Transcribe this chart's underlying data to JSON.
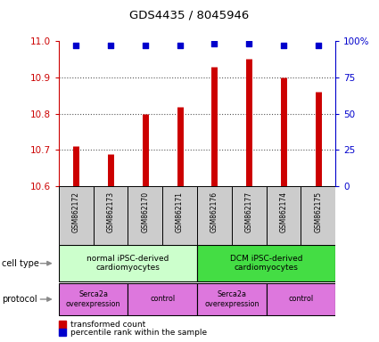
{
  "title": "GDS4435 / 8045946",
  "samples": [
    "GSM862172",
    "GSM862173",
    "GSM862170",
    "GSM862171",
    "GSM862176",
    "GSM862177",
    "GSM862174",
    "GSM862175"
  ],
  "transformed_counts": [
    10.71,
    10.69,
    10.8,
    10.82,
    10.93,
    10.95,
    10.9,
    10.86
  ],
  "percentile_ranks": [
    97,
    97,
    97,
    97,
    98,
    98,
    97,
    97
  ],
  "ylim": [
    10.6,
    11.0
  ],
  "y_ticks": [
    10.6,
    10.7,
    10.8,
    10.9,
    11.0
  ],
  "right_yticks": [
    0,
    25,
    50,
    75,
    100
  ],
  "right_ylim": [
    0,
    100
  ],
  "bar_color": "#cc0000",
  "dot_color": "#0000cc",
  "cell_type_groups": [
    {
      "label": "normal iPSC-derived\ncardiomyocytes",
      "start": 0,
      "end": 3,
      "color": "#ccffcc"
    },
    {
      "label": "DCM iPSC-derived\ncardiomyocytes",
      "start": 4,
      "end": 7,
      "color": "#44dd44"
    }
  ],
  "protocol_groups": [
    {
      "label": "Serca2a\noverexpression",
      "start": 0,
      "end": 1,
      "color": "#dd77dd"
    },
    {
      "label": "control",
      "start": 2,
      "end": 3,
      "color": "#dd77dd"
    },
    {
      "label": "Serca2a\noverexpression",
      "start": 4,
      "end": 5,
      "color": "#dd77dd"
    },
    {
      "label": "control",
      "start": 6,
      "end": 7,
      "color": "#dd77dd"
    }
  ],
  "cell_type_label": "cell type",
  "protocol_label": "protocol",
  "legend_bar_label": "transformed count",
  "legend_dot_label": "percentile rank within the sample",
  "dotted_line_color": "#555555",
  "sample_bg_color": "#cccccc"
}
